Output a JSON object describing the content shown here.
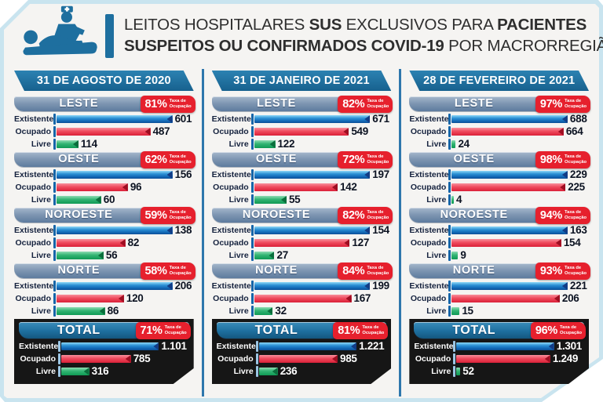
{
  "header": {
    "title_lines": [
      [
        {
          "t": "LEITOS HOSPITALARES ",
          "b": 0
        },
        {
          "t": "SUS",
          "b": 1
        },
        {
          "t": " EXCLUSIVOS PARA ",
          "b": 0
        },
        {
          "t": "PACIENTES",
          "b": 1
        }
      ],
      [
        {
          "t": "SUSPEITOS OU CONFIRMADOS COVID-19",
          "b": 1
        },
        {
          "t": " POR MACRORREGIÃO",
          "b": 0
        }
      ]
    ]
  },
  "badge_caption": [
    "Taxa de",
    "Ocupação"
  ],
  "colors": {
    "brand_teal": "#1e6f9f",
    "badge_red": "#e6202d",
    "separator_blue": "#2e77ad",
    "header_steel": "#7e96b2",
    "total_bg": "#161616",
    "frame_blue": "#c9e4ef",
    "existente_bar": "#1268b5",
    "ocupado_bar": "#e8374c",
    "livre_bar": "#17a45e"
  },
  "chart_data": [
    {
      "type": "bar",
      "title": "31 DE AGOSTO DE 2020",
      "categories": [
        "Extistente",
        "Ocupado",
        "Livre"
      ],
      "legend_position": "none",
      "sections": [
        {
          "name": "LESTE",
          "occupancy": "81%",
          "values": [
            601,
            487,
            114
          ]
        },
        {
          "name": "OESTE",
          "occupancy": "62%",
          "values": [
            156,
            96,
            60
          ]
        },
        {
          "name": "NOROESTE",
          "occupancy": "59%",
          "values": [
            138,
            82,
            56
          ]
        },
        {
          "name": "NORTE",
          "occupancy": "58%",
          "values": [
            206,
            120,
            86
          ]
        },
        {
          "name": "TOTAL",
          "occupancy": "71%",
          "values": [
            1101,
            785,
            316
          ],
          "is_total": true
        }
      ]
    },
    {
      "type": "bar",
      "title": "31 DE JANEIRO DE 2021",
      "categories": [
        "Extistente",
        "Ocupado",
        "Livre"
      ],
      "legend_position": "none",
      "sections": [
        {
          "name": "LESTE",
          "occupancy": "82%",
          "values": [
            671,
            549,
            122
          ]
        },
        {
          "name": "OESTE",
          "occupancy": "72%",
          "values": [
            197,
            142,
            55
          ]
        },
        {
          "name": "NOROESTE",
          "occupancy": "82%",
          "values": [
            154,
            127,
            27
          ]
        },
        {
          "name": "NORTE",
          "occupancy": "84%",
          "values": [
            199,
            167,
            32
          ]
        },
        {
          "name": "TOTAL",
          "occupancy": "81%",
          "values": [
            1221,
            985,
            236
          ],
          "is_total": true
        }
      ]
    },
    {
      "type": "bar",
      "title": "28 DE FEVEREIRO DE 2021",
      "categories": [
        "Extistente",
        "Ocupado",
        "Livre"
      ],
      "legend_position": "none",
      "sections": [
        {
          "name": "LESTE",
          "occupancy": "97%",
          "values": [
            688,
            664,
            24
          ]
        },
        {
          "name": "OESTE",
          "occupancy": "98%",
          "values": [
            229,
            225,
            4
          ]
        },
        {
          "name": "NOROESTE",
          "occupancy": "94%",
          "values": [
            163,
            154,
            9
          ]
        },
        {
          "name": "NORTE",
          "occupancy": "93%",
          "values": [
            221,
            206,
            15
          ]
        },
        {
          "name": "TOTAL",
          "occupancy": "96%",
          "values": [
            1301,
            1249,
            52
          ],
          "is_total": true
        }
      ]
    }
  ]
}
